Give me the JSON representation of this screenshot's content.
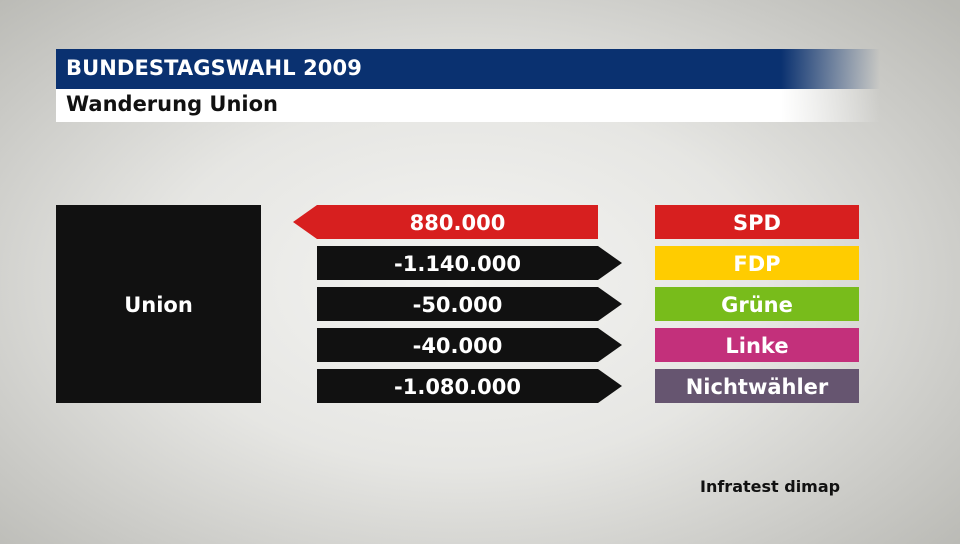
{
  "header": {
    "title": "BUNDESTAGSWAHL 2009",
    "subtitle": "Wanderung Union"
  },
  "source": "Infratest dimap",
  "chart_data": {
    "type": "bar",
    "title": "BUNDESTAGSWAHL 2009",
    "subtitle": "Wanderung Union",
    "center_party": "Union",
    "center_color": "#111111",
    "rows": [
      {
        "party": "SPD",
        "value": 880000,
        "label": "880.000",
        "direction": "in",
        "color": "#d71f1f"
      },
      {
        "party": "FDP",
        "value": -1140000,
        "label": "-1.140.000",
        "direction": "out",
        "color": "#ffcc00"
      },
      {
        "party": "Grüne",
        "value": -50000,
        "label": "-50.000",
        "direction": "out",
        "color": "#78bc1b"
      },
      {
        "party": "Linke",
        "value": -40000,
        "label": "-40.000",
        "direction": "out",
        "color": "#c3307b"
      },
      {
        "party": "Nichtwähler",
        "value": -1080000,
        "label": "-1.080.000",
        "direction": "out",
        "color": "#665570"
      }
    ]
  }
}
